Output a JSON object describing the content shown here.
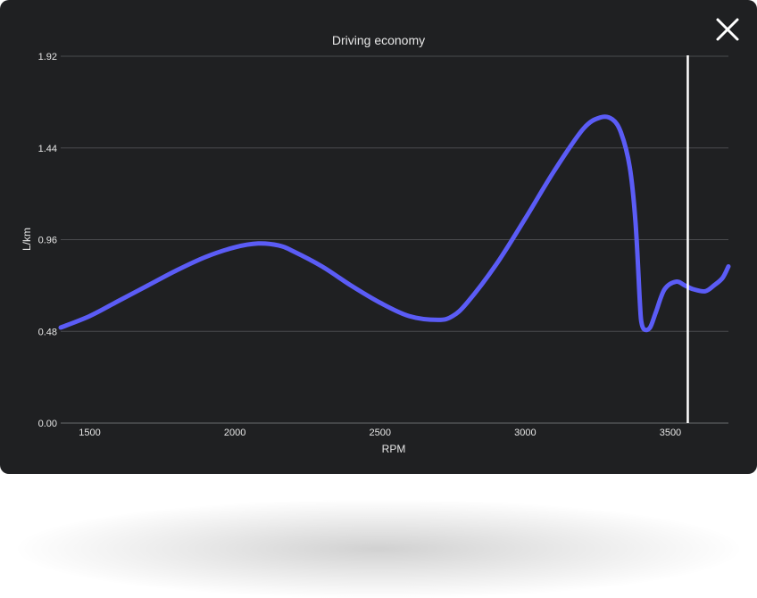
{
  "window": {
    "close_icon": "close-icon"
  },
  "colors": {
    "panel_background": "#1f2022",
    "line": "#5b5cf6",
    "cursor": "#ffffff",
    "grid": "#4a4b4e",
    "text": "#e6e6e6"
  },
  "chart_data": {
    "type": "line",
    "title": "Driving economy",
    "xlabel": "RPM",
    "ylabel": "L/km",
    "xlim": [
      1400,
      3700
    ],
    "ylim": [
      0,
      1.92
    ],
    "x_ticks": [
      1500,
      2000,
      2500,
      3000,
      3500
    ],
    "x_tick_labels": [
      "1500",
      "2000",
      "2500",
      "3000",
      "3500"
    ],
    "y_ticks": [
      0,
      0.48,
      0.96,
      1.44,
      1.92
    ],
    "y_tick_labels": [
      "0.00",
      "0.48",
      "0.96",
      "1.44",
      "1.92"
    ],
    "grid": "horizontal",
    "legend": "none",
    "cursor_x": 3560,
    "series": [
      {
        "x": [
          1400,
          1500,
          1600,
          1700,
          1800,
          1900,
          2000,
          2080,
          2150,
          2200,
          2300,
          2400,
          2500,
          2600,
          2700,
          2750,
          2800,
          2900,
          3000,
          3100,
          3200,
          3260,
          3300,
          3330,
          3360,
          3380,
          3395,
          3400,
          3410,
          3430,
          3450,
          3480,
          3520,
          3550,
          3580,
          3620,
          3650,
          3680,
          3700
        ],
        "y": [
          0.5,
          0.56,
          0.64,
          0.72,
          0.8,
          0.87,
          0.92,
          0.94,
          0.93,
          0.9,
          0.82,
          0.72,
          0.63,
          0.56,
          0.54,
          0.56,
          0.63,
          0.83,
          1.07,
          1.32,
          1.54,
          1.6,
          1.59,
          1.52,
          1.34,
          1.05,
          0.63,
          0.53,
          0.49,
          0.5,
          0.58,
          0.7,
          0.74,
          0.72,
          0.7,
          0.69,
          0.72,
          0.76,
          0.82
        ]
      }
    ]
  }
}
